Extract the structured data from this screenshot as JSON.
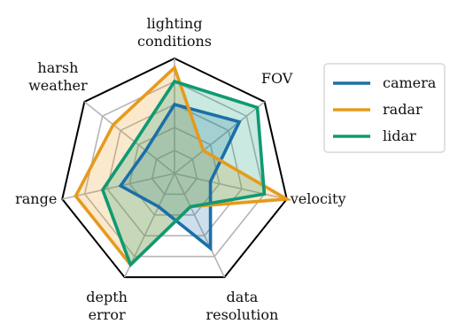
{
  "chart_data": {
    "type": "radar",
    "axes": [
      "lighting\nconditions",
      "FOV",
      "velocity",
      "data\nresolution",
      "depth\nerror",
      "range",
      "harsh\nweather"
    ],
    "rlim": [
      0,
      5
    ],
    "levels": 5,
    "grid": true,
    "legend_position": "top-right",
    "series": [
      {
        "name": "camera",
        "color": "#1b6fa8",
        "values": [
          3,
          3.6,
          1.6,
          3.6,
          1.6,
          2.4,
          1.6
        ]
      },
      {
        "name": "radar",
        "color": "#e69a1d",
        "values": [
          4.6,
          1.6,
          5,
          1.6,
          4.4,
          4.4,
          3.4
        ]
      },
      {
        "name": "lidar",
        "color": "#0f9a72",
        "values": [
          4,
          4.6,
          4,
          1.6,
          4.4,
          3.2,
          2.2
        ]
      }
    ]
  }
}
